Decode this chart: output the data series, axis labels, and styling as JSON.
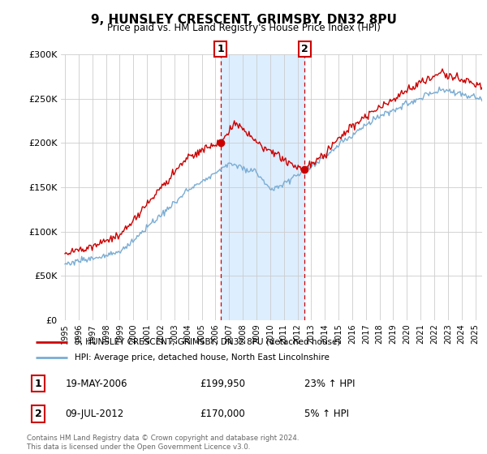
{
  "title": "9, HUNSLEY CRESCENT, GRIMSBY, DN32 8PU",
  "subtitle": "Price paid vs. HM Land Registry's House Price Index (HPI)",
  "legend_line1": "9, HUNSLEY CRESCENT, GRIMSBY, DN32 8PU (detached house)",
  "legend_line2": "HPI: Average price, detached house, North East Lincolnshire",
  "transaction1_date": "19-MAY-2006",
  "transaction1_price": "£199,950",
  "transaction1_hpi": "23% ↑ HPI",
  "transaction2_date": "09-JUL-2012",
  "transaction2_price": "£170,000",
  "transaction2_hpi": "5% ↑ HPI",
  "footer": "Contains HM Land Registry data © Crown copyright and database right 2024.\nThis data is licensed under the Open Government Licence v3.0.",
  "red_color": "#cc0000",
  "blue_color": "#7aadd4",
  "shade_color": "#ddeeff",
  "marker1_year": 2006.38,
  "marker2_year": 2012.52,
  "marker1_value": 200000,
  "marker2_value": 170000,
  "ylim": [
    0,
    300000
  ],
  "yticks": [
    0,
    50000,
    100000,
    150000,
    200000,
    250000,
    300000
  ],
  "xlim_left": 1994.7,
  "xlim_right": 2025.5
}
